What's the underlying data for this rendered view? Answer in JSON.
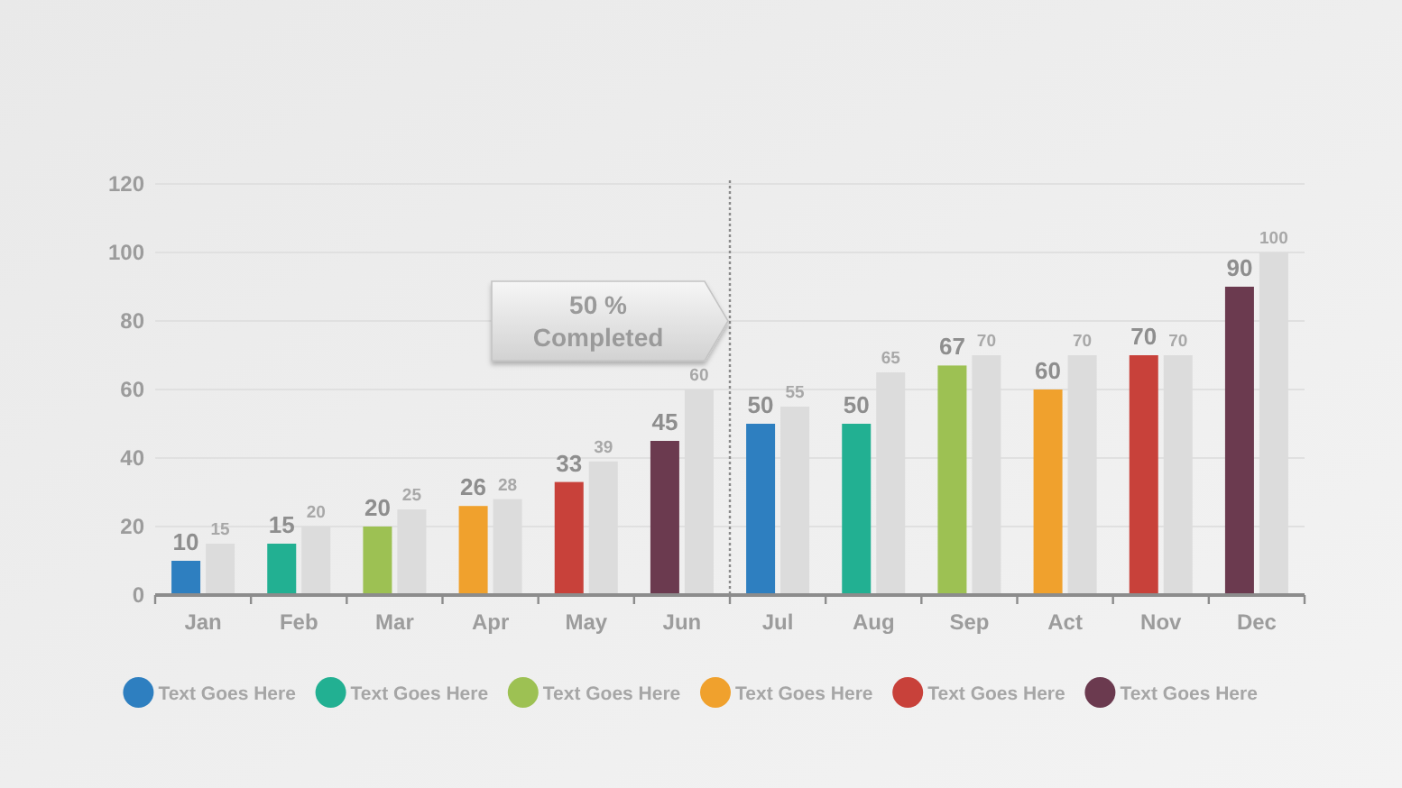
{
  "chart_data": {
    "type": "bar",
    "categories": [
      "Jan",
      "Feb",
      "Mar",
      "Apr",
      "May",
      "Jun",
      "Jul",
      "Aug",
      "Sep",
      "Act",
      "Nov",
      "Dec"
    ],
    "series": [
      {
        "name": "Text Goes Here",
        "color": "#2e7fc0",
        "values": [
          10,
          null,
          null,
          null,
          null,
          null,
          50,
          null,
          null,
          null,
          null,
          null
        ]
      },
      {
        "name": "Text Goes Here",
        "color": "#22b092",
        "values": [
          null,
          15,
          null,
          null,
          null,
          null,
          null,
          50,
          null,
          null,
          null,
          null
        ]
      },
      {
        "name": "Text Goes Here",
        "color": "#9dc153",
        "values": [
          null,
          null,
          20,
          null,
          null,
          null,
          null,
          null,
          67,
          null,
          null,
          null
        ]
      },
      {
        "name": "Text Goes Here",
        "color": "#f0a12d",
        "values": [
          null,
          null,
          null,
          26,
          null,
          null,
          null,
          null,
          null,
          60,
          null,
          null
        ]
      },
      {
        "name": "Text Goes Here",
        "color": "#c8413a",
        "values": [
          null,
          null,
          null,
          null,
          33,
          null,
          null,
          null,
          null,
          null,
          70,
          null
        ]
      },
      {
        "name": "Text Goes Here",
        "color": "#6b3a4f",
        "values": [
          null,
          null,
          null,
          null,
          null,
          45,
          null,
          null,
          null,
          null,
          null,
          90
        ]
      },
      {
        "color": "#dcdcdc",
        "values": [
          15,
          20,
          25,
          28,
          39,
          60,
          55,
          65,
          70,
          70,
          70,
          100
        ]
      }
    ],
    "ylim": [
      0,
      120
    ],
    "yticks": [
      0,
      20,
      40,
      60,
      80,
      100,
      120
    ],
    "grid": "y",
    "legend": "bottom",
    "data_labels": true,
    "annotations": [
      "50 % Completed"
    ]
  }
}
